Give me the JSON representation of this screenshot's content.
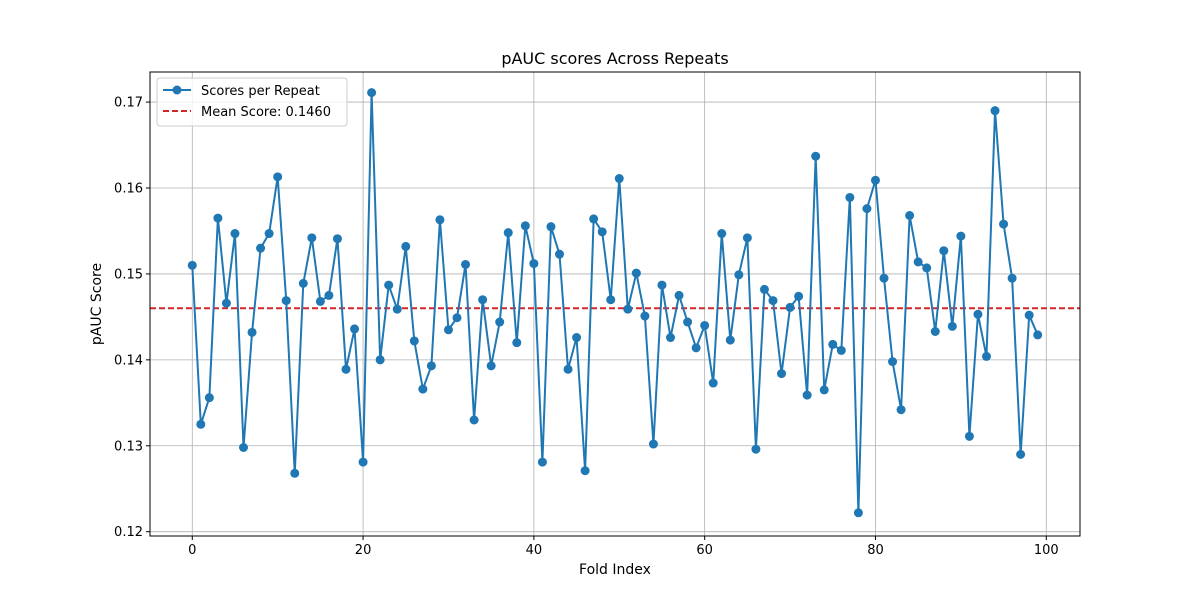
{
  "chart_data": {
    "type": "line",
    "title": "pAUC scores Across Repeats",
    "xlabel": "Fold Index",
    "ylabel": "pAUC Score",
    "xlim": [
      -4.95,
      103.95
    ],
    "ylim": [
      0.1195,
      0.1735
    ],
    "xticks": [
      0,
      20,
      40,
      60,
      80,
      100
    ],
    "yticks": [
      0.12,
      0.13,
      0.14,
      0.15,
      0.16,
      0.17
    ],
    "xtick_labels": [
      "0",
      "20",
      "40",
      "60",
      "80",
      "100"
    ],
    "ytick_labels": [
      "0.12",
      "0.13",
      "0.14",
      "0.15",
      "0.16",
      "0.17"
    ],
    "grid": true,
    "legend_position": "upper-left",
    "series": [
      {
        "name": "Scores per Repeat",
        "color": "#1f77b4",
        "style": "line-with-markers",
        "x": [
          0,
          1,
          2,
          3,
          4,
          5,
          6,
          7,
          8,
          9,
          10,
          11,
          12,
          13,
          14,
          15,
          16,
          17,
          18,
          19,
          20,
          21,
          22,
          23,
          24,
          25,
          26,
          27,
          28,
          29,
          30,
          31,
          32,
          33,
          34,
          35,
          36,
          37,
          38,
          39,
          40,
          41,
          42,
          43,
          44,
          45,
          46,
          47,
          48,
          49,
          50,
          51,
          52,
          53,
          54,
          55,
          56,
          57,
          58,
          59,
          60,
          61,
          62,
          63,
          64,
          65,
          66,
          67,
          68,
          69,
          70,
          71,
          72,
          73,
          74,
          75,
          76,
          77,
          78,
          79,
          80,
          81,
          82,
          83,
          84,
          85,
          86,
          87,
          88,
          89,
          90,
          91,
          92,
          93,
          94,
          95,
          96,
          97,
          98,
          99
        ],
        "values": [
          0.151,
          0.1325,
          0.1356,
          0.1565,
          0.1466,
          0.1547,
          0.1298,
          0.1432,
          0.153,
          0.1547,
          0.1613,
          0.1469,
          0.1268,
          0.1489,
          0.1542,
          0.1468,
          0.1475,
          0.1541,
          0.1389,
          0.1436,
          0.1281,
          0.1711,
          0.14,
          0.1487,
          0.1459,
          0.1532,
          0.1422,
          0.1366,
          0.1393,
          0.1563,
          0.1435,
          0.1449,
          0.1511,
          0.133,
          0.147,
          0.1393,
          0.1444,
          0.1548,
          0.142,
          0.1556,
          0.1512,
          0.1281,
          0.1555,
          0.1523,
          0.1389,
          0.1426,
          0.1271,
          0.1564,
          0.1549,
          0.147,
          0.1611,
          0.1459,
          0.1501,
          0.1451,
          0.1302,
          0.1487,
          0.1426,
          0.1475,
          0.1444,
          0.1414,
          0.144,
          0.1373,
          0.1547,
          0.1423,
          0.1499,
          0.1542,
          0.1296,
          0.1482,
          0.1469,
          0.1384,
          0.1461,
          0.1474,
          0.1359,
          0.1637,
          0.1365,
          0.1418,
          0.1411,
          0.1589,
          0.1222,
          0.1576,
          0.1609,
          0.1495,
          0.1398,
          0.1342,
          0.1568,
          0.1514,
          0.1507,
          0.1433,
          0.1527,
          0.1439,
          0.1544,
          0.1311,
          0.1453,
          0.1404,
          0.169,
          0.1558,
          0.1495,
          0.129,
          0.1452,
          0.1429
        ]
      }
    ],
    "reference_line": {
      "name": "Mean Score: 0.1460",
      "value": 0.146,
      "color": "#d62728",
      "style": "dashed"
    }
  }
}
